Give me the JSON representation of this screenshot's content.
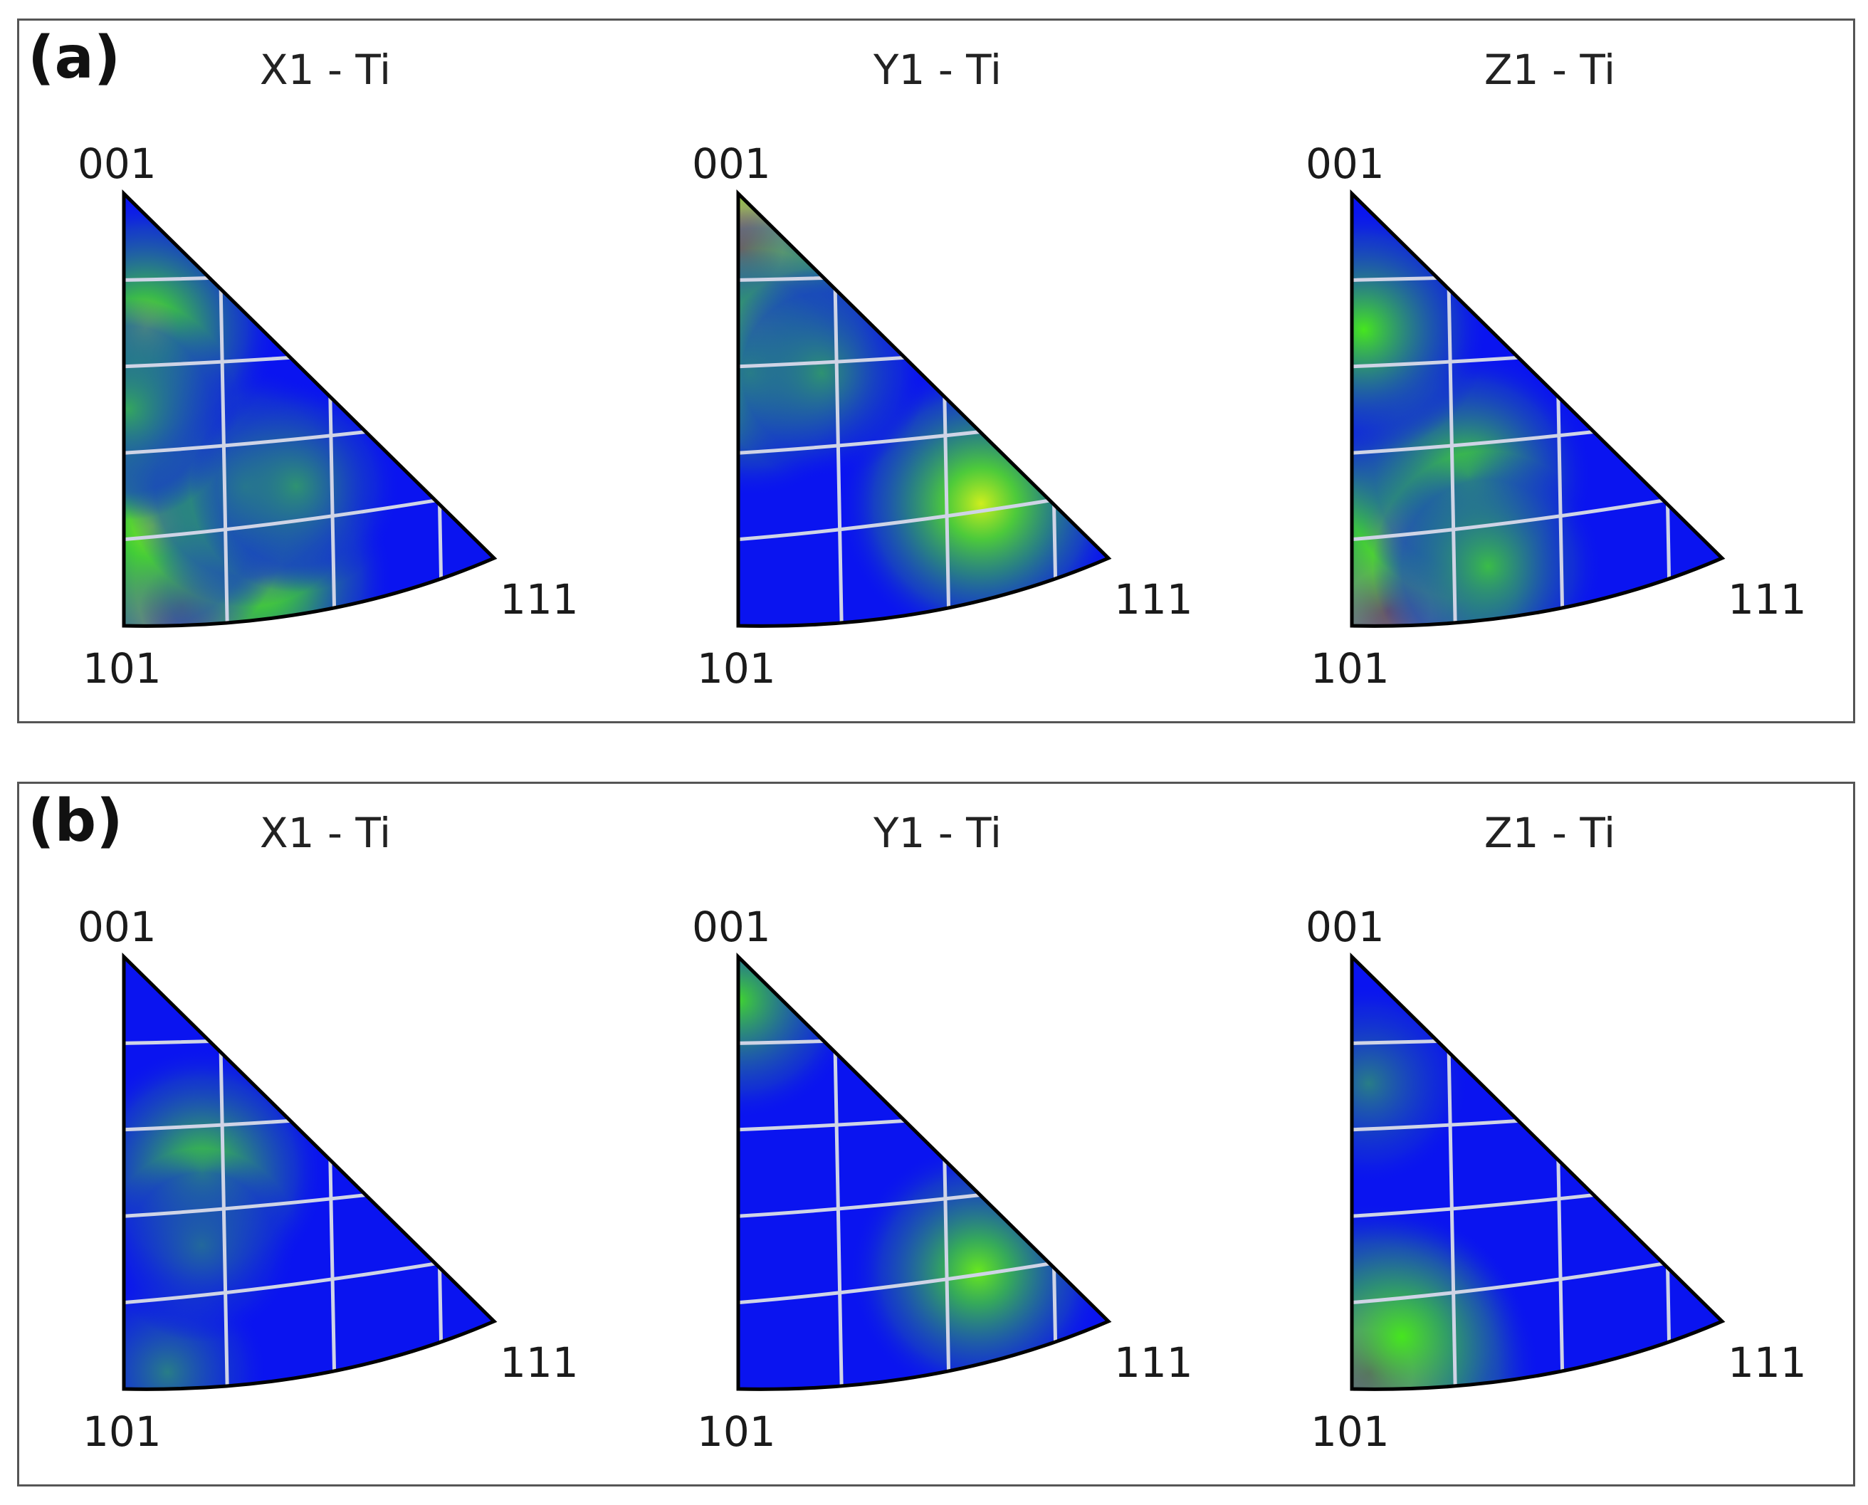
{
  "chart_data": [
    {
      "panel": "(a)",
      "type": "heatmap",
      "plots": [
        {
          "title": "X1 - Ti",
          "corners": [
            "001",
            "101",
            "111"
          ],
          "spots": [
            {
              "u": 0.16,
              "v": 0.02,
              "level": 0.95
            },
            {
              "u": 0.4,
              "v": 0.05,
              "level": 0.55
            },
            {
              "u": 0.1,
              "v": 0.22,
              "level": 0.6
            },
            {
              "u": 0.45,
              "v": 0.27,
              "level": 0.45
            },
            {
              "u": 0.18,
              "v": 0.68,
              "level": 0.6
            },
            {
              "u": 0.02,
              "v": 0.5,
              "level": 0.35
            },
            {
              "u": 0.62,
              "v": 0.25,
              "level": 0.3
            }
          ]
        },
        {
          "title": "Y1 - Ti",
          "corners": [
            "001",
            "101",
            "111"
          ],
          "spots": [
            {
              "u": 0.06,
              "v": 0.87,
              "level": 0.95
            },
            {
              "u": 0.15,
              "v": 0.68,
              "level": 0.6
            },
            {
              "u": 0.08,
              "v": 0.58,
              "level": 0.5
            },
            {
              "u": 0.8,
              "v": 0.18,
              "level": 0.7
            },
            {
              "u": 0.5,
              "v": 0.55,
              "level": 0.3
            }
          ]
        },
        {
          "title": "Z1 - Ti",
          "corners": [
            "001",
            "101",
            "111"
          ],
          "spots": [
            {
              "u": 0.1,
              "v": 0.02,
              "level": 1.0
            },
            {
              "u": 0.15,
              "v": 0.2,
              "level": 0.6
            },
            {
              "u": 0.45,
              "v": 0.3,
              "level": 0.5
            },
            {
              "u": 0.1,
              "v": 0.68,
              "level": 0.5
            },
            {
              "u": 0.4,
              "v": 0.08,
              "level": 0.4
            }
          ]
        }
      ]
    },
    {
      "panel": "(b)",
      "type": "heatmap",
      "plots": [
        {
          "title": "X1 - Ti",
          "corners": [
            "001",
            "101",
            "111"
          ],
          "spots": [
            {
              "u": 0.4,
              "v": 0.47,
              "level": 0.5
            },
            {
              "u": 0.12,
              "v": 0.02,
              "level": 0.25
            },
            {
              "u": 0.3,
              "v": 0.3,
              "level": 0.2
            }
          ]
        },
        {
          "title": "Y1 - Ti",
          "corners": [
            "001",
            "101",
            "111"
          ],
          "spots": [
            {
              "u": 0.03,
              "v": 0.9,
              "level": 0.45
            },
            {
              "u": 0.78,
              "v": 0.17,
              "level": 0.55
            }
          ]
        },
        {
          "title": "Z1 - Ti",
          "corners": [
            "001",
            "101",
            "111"
          ],
          "spots": [
            {
              "u": 0.05,
              "v": 0.03,
              "level": 1.0
            },
            {
              "u": 0.15,
              "v": 0.1,
              "level": 0.5
            },
            {
              "u": 0.15,
              "v": 0.7,
              "level": 0.25
            }
          ]
        }
      ]
    }
  ],
  "colors": {
    "low": "#0a14f0",
    "mid": "#46e61e",
    "high": "#e61414",
    "grid": "#cfd4e6",
    "outline": "#000000",
    "frame": "#555555"
  }
}
